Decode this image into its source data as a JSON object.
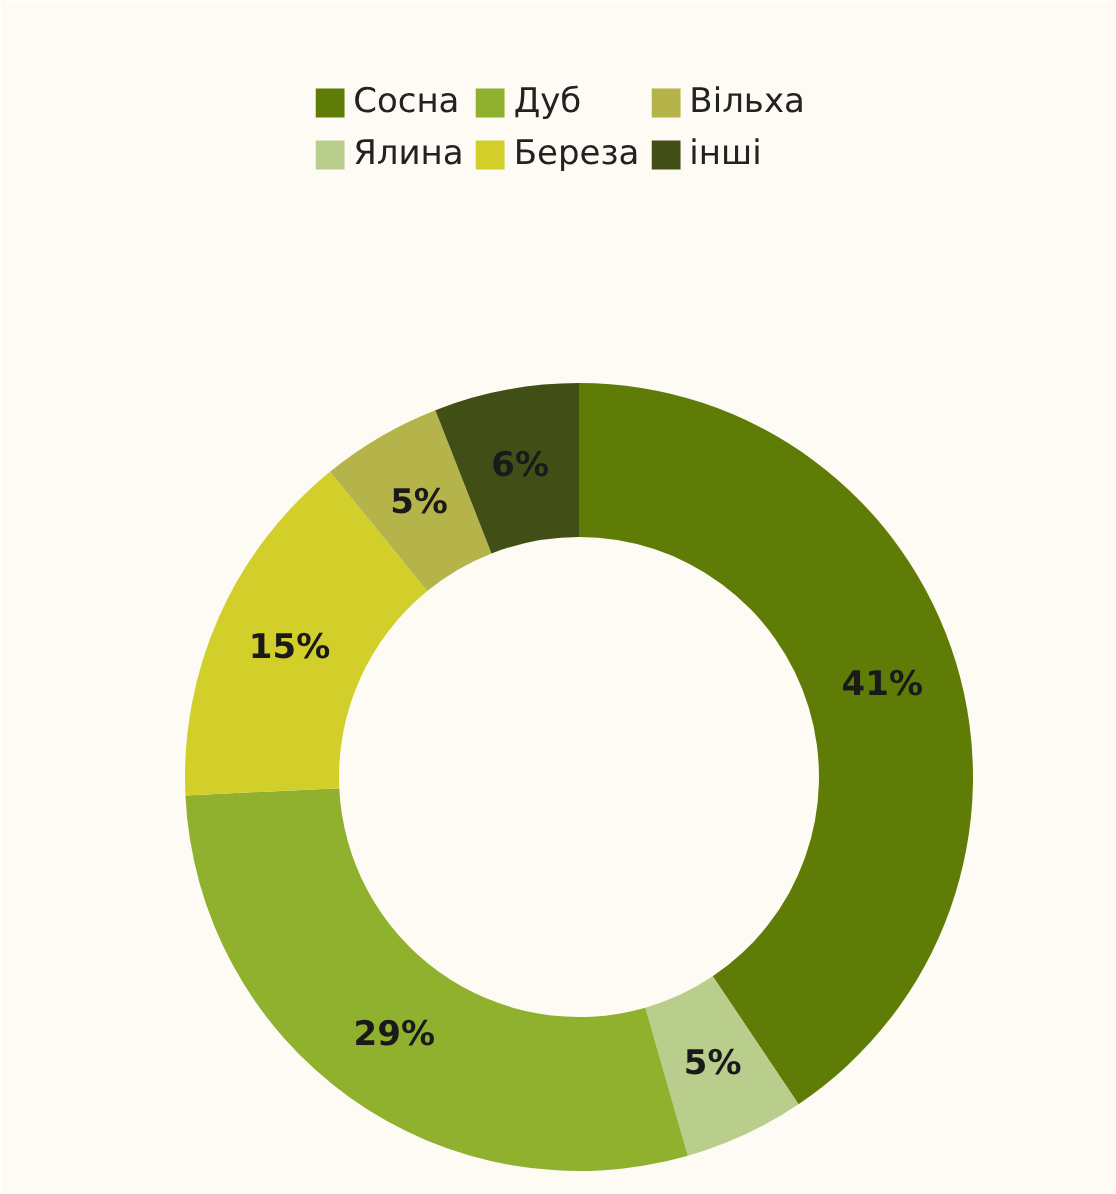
{
  "chart_data": {
    "type": "donut",
    "categories": [
      "Сосна",
      "Ялина",
      "Дуб",
      "Береза",
      "Вільха",
      "інші"
    ],
    "values": [
      41,
      5,
      29,
      15,
      5,
      6
    ],
    "colors": [
      "#5f7d06",
      "#b9cd8c",
      "#8fb12e",
      "#d2cf2a",
      "#b5b44a",
      "#414f17"
    ],
    "value_labels": [
      "41%",
      "5%",
      "29%",
      "15%",
      "5%",
      "6%"
    ],
    "legend": "top"
  }
}
